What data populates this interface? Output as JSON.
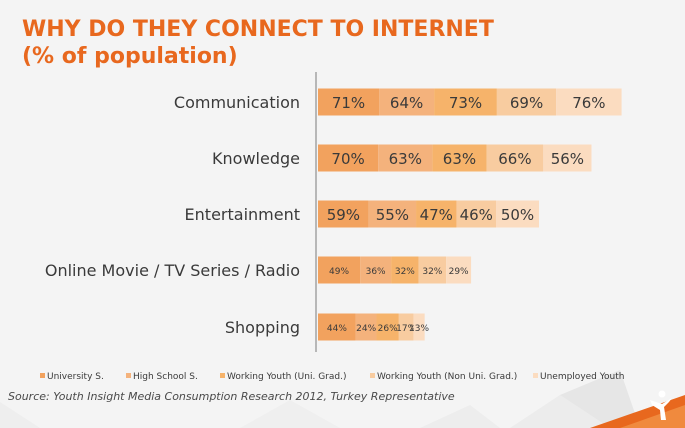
{
  "title_line1": "WHY DO THEY CONNECT TO INTERNET",
  "title_line2": "(% of population)",
  "source": "Source: Youth Insight Media Consumption Research 2012, Turkey Representative",
  "colors": {
    "title": "#e8681e",
    "series": [
      "#f2a25e",
      "#f4b27c",
      "#f6b36a",
      "#f8cca0",
      "#fbdcc0"
    ],
    "background": "#f4f4f4",
    "accent": "#e8681e"
  },
  "chart_data": {
    "type": "bar",
    "orientation": "horizontal",
    "stacked": true,
    "categories": [
      "Communication",
      "Knowledge",
      "Entertainment",
      "Online Movie / TV Series / Radio",
      "Shopping"
    ],
    "series": [
      {
        "name": "University S.",
        "values": [
          71,
          70,
          59,
          49,
          44
        ],
        "labels": [
          "71%",
          "70%",
          "59%",
          "49%",
          "44%"
        ]
      },
      {
        "name": "High School S.",
        "values": [
          64,
          63,
          55,
          36,
          24
        ],
        "labels": [
          "64%",
          "63%",
          "55%",
          "36%",
          "24%"
        ]
      },
      {
        "name": "Working Youth (Uni. Grad.)",
        "values": [
          73,
          63,
          47,
          32,
          26
        ],
        "labels": [
          "73%",
          "63%",
          "47%",
          "32%",
          "26%"
        ]
      },
      {
        "name": "Working Youth (Non Uni. Grad.)",
        "values": [
          69,
          66,
          46,
          32,
          17
        ],
        "labels": [
          "69%",
          "66%",
          "46%",
          "32%",
          "17%"
        ]
      },
      {
        "name": "Unemployed Youth",
        "values": [
          76,
          56,
          50,
          29,
          13
        ],
        "labels": [
          "76%",
          "56%",
          "50%",
          "29%",
          "13%"
        ]
      }
    ],
    "legend_position": "bottom",
    "grid": false
  }
}
